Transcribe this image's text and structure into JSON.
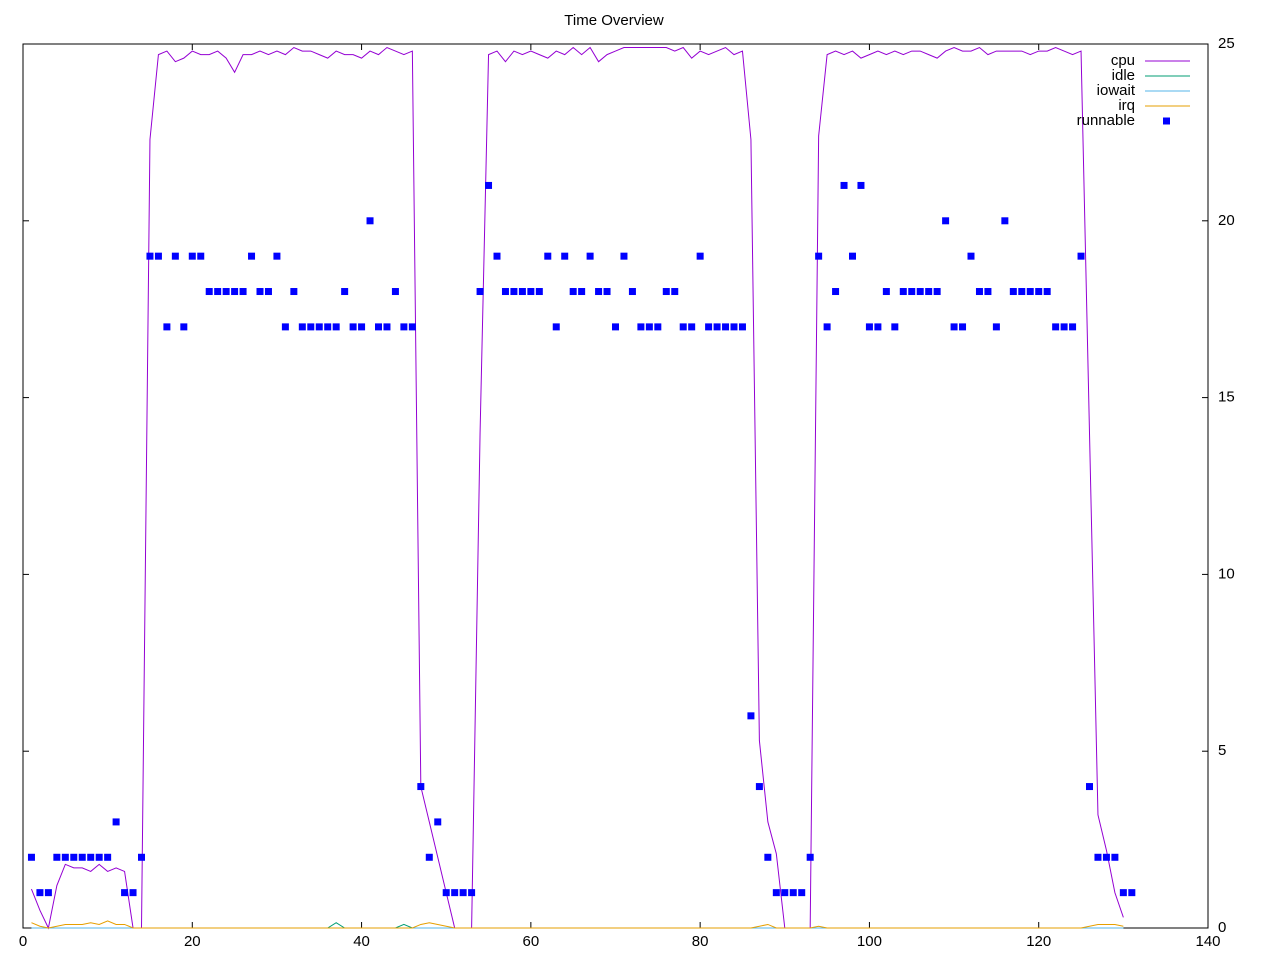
{
  "chart_data": {
    "type": "line",
    "title": "Time Overview",
    "x": [
      1,
      2,
      3,
      4,
      5,
      6,
      7,
      8,
      9,
      10,
      11,
      12,
      13,
      14,
      15,
      16,
      17,
      18,
      19,
      20,
      21,
      22,
      23,
      24,
      25,
      26,
      27,
      28,
      29,
      30,
      31,
      32,
      33,
      34,
      35,
      36,
      37,
      38,
      39,
      40,
      41,
      42,
      43,
      44,
      45,
      46,
      47,
      48,
      49,
      50,
      51,
      52,
      53,
      54,
      55,
      56,
      57,
      58,
      59,
      60,
      61,
      62,
      63,
      64,
      65,
      66,
      67,
      68,
      69,
      70,
      71,
      72,
      73,
      74,
      75,
      76,
      77,
      78,
      79,
      80,
      81,
      82,
      83,
      84,
      85,
      86,
      87,
      88,
      89,
      90,
      91,
      92,
      93,
      94,
      95,
      96,
      97,
      98,
      99,
      100,
      101,
      102,
      103,
      104,
      105,
      106,
      107,
      108,
      109,
      110,
      111,
      112,
      113,
      114,
      115,
      116,
      117,
      118,
      119,
      120,
      121,
      122,
      123,
      124,
      125,
      126,
      127,
      128,
      129,
      130,
      131
    ],
    "series": [
      {
        "name": "cpu",
        "color": "#9400d3",
        "style": "line",
        "values": [
          1.1,
          0.5,
          0,
          1.2,
          1.8,
          1.7,
          1.7,
          1.6,
          1.8,
          1.6,
          1.7,
          1.6,
          0,
          0,
          22.3,
          24.7,
          24.8,
          24.5,
          24.6,
          24.8,
          24.7,
          24.7,
          24.8,
          24.6,
          24.2,
          24.7,
          24.7,
          24.8,
          24.7,
          24.8,
          24.7,
          24.9,
          24.8,
          24.8,
          24.7,
          24.6,
          24.8,
          24.7,
          24.7,
          24.6,
          24.8,
          24.7,
          24.9,
          24.8,
          24.7,
          24.8,
          4.0,
          3.0,
          2.0,
          1.0,
          0,
          0,
          0,
          14,
          24.7,
          24.8,
          24.5,
          24.8,
          24.7,
          24.8,
          24.7,
          24.6,
          24.8,
          24.7,
          24.9,
          24.7,
          24.9,
          24.5,
          24.7,
          24.8,
          24.9,
          24.9,
          24.9,
          24.9,
          24.9,
          24.9,
          24.8,
          24.9,
          24.6,
          24.8,
          24.7,
          24.8,
          24.9,
          24.7,
          24.8,
          22.3,
          5.3,
          3.0,
          2.1,
          0,
          0,
          0,
          0,
          22.4,
          24.7,
          24.8,
          24.7,
          24.8,
          24.6,
          24.7,
          24.8,
          24.7,
          24.8,
          24.7,
          24.8,
          24.8,
          24.7,
          24.6,
          24.8,
          24.9,
          24.8,
          24.8,
          24.9,
          24.7,
          24.8,
          24.8,
          24.8,
          24.8,
          24.7,
          24.8,
          24.8,
          24.9,
          24.8,
          24.7,
          24.8,
          14,
          3.2,
          2.2,
          1.0,
          0.3,
          null
        ]
      },
      {
        "name": "idle",
        "color": "#009e73",
        "style": "line",
        "values": [
          0,
          0,
          0,
          0,
          0,
          0,
          0,
          0,
          0,
          0,
          0,
          0,
          0,
          0,
          0,
          0,
          0,
          0,
          0,
          0,
          0,
          0,
          0,
          0,
          0,
          0,
          0,
          0,
          0,
          0,
          0,
          0,
          0,
          0,
          0,
          0,
          0.15,
          0,
          0,
          0,
          0,
          0,
          0,
          0,
          0.1,
          0,
          0,
          0,
          0,
          0,
          0,
          0,
          0,
          0,
          0,
          0,
          0,
          0,
          0,
          0,
          0,
          0,
          0,
          0,
          0,
          0,
          0,
          0,
          0,
          0,
          0,
          0,
          0,
          0,
          0,
          0,
          0,
          0,
          0,
          0,
          0,
          0,
          0,
          0,
          0,
          0,
          0,
          0,
          0,
          0,
          0,
          0,
          0,
          0,
          0,
          0,
          0,
          0,
          0,
          0,
          0,
          0,
          0,
          0,
          0,
          0,
          0,
          0,
          0,
          0,
          0,
          0,
          0,
          0,
          0,
          0,
          0,
          0,
          0,
          0,
          0,
          0,
          0,
          0,
          0,
          0,
          0,
          0,
          0,
          0,
          null
        ]
      },
      {
        "name": "iowait",
        "color": "#56b4e9",
        "style": "line",
        "values": [
          0,
          0,
          0,
          0,
          0,
          0,
          0,
          0,
          0,
          0,
          0,
          0,
          0,
          0,
          0,
          0,
          0,
          0,
          0,
          0,
          0,
          0,
          0,
          0,
          0,
          0,
          0,
          0,
          0,
          0,
          0,
          0,
          0,
          0,
          0,
          0,
          0,
          0,
          0,
          0,
          0,
          0,
          0,
          0,
          0,
          0,
          0,
          0,
          0,
          0,
          0,
          0,
          0,
          0,
          0,
          0,
          0,
          0,
          0,
          0,
          0,
          0,
          0,
          0,
          0,
          0,
          0,
          0,
          0,
          0,
          0,
          0,
          0,
          0,
          0,
          0,
          0,
          0,
          0,
          0,
          0,
          0,
          0,
          0,
          0,
          0,
          0,
          0,
          0,
          0,
          0,
          0,
          0,
          0,
          0,
          0,
          0,
          0,
          0,
          0,
          0,
          0,
          0,
          0,
          0,
          0,
          0,
          0,
          0,
          0,
          0,
          0,
          0,
          0,
          0,
          0,
          0,
          0,
          0,
          0,
          0,
          0,
          0,
          0,
          0,
          0,
          0,
          0,
          0,
          0,
          null
        ]
      },
      {
        "name": "irq",
        "color": "#e69f00",
        "style": "line",
        "values": [
          0.15,
          0.05,
          0,
          0.05,
          0.1,
          0.1,
          0.1,
          0.15,
          0.1,
          0.2,
          0.1,
          0.1,
          0,
          0,
          0,
          0,
          0,
          0,
          0,
          0,
          0,
          0,
          0,
          0,
          0,
          0,
          0,
          0,
          0,
          0,
          0,
          0,
          0,
          0,
          0,
          0,
          0,
          0,
          0,
          0,
          0,
          0,
          0,
          0,
          0,
          0,
          0.1,
          0.15,
          0.1,
          0.05,
          0,
          0,
          0,
          0,
          0,
          0,
          0,
          0,
          0,
          0,
          0,
          0,
          0,
          0,
          0,
          0,
          0,
          0,
          0,
          0,
          0,
          0,
          0,
          0,
          0,
          0,
          0,
          0,
          0,
          0,
          0,
          0,
          0,
          0,
          0,
          0,
          0.05,
          0.1,
          0,
          0,
          0,
          0,
          0,
          0.05,
          0,
          0,
          0,
          0,
          0,
          0,
          0,
          0,
          0,
          0,
          0,
          0,
          0,
          0,
          0,
          0,
          0,
          0,
          0,
          0,
          0,
          0,
          0,
          0,
          0,
          0,
          0,
          0,
          0,
          0,
          0,
          0.05,
          0.1,
          0.1,
          0.1,
          0.05,
          null
        ]
      },
      {
        "name": "runnable",
        "color": "#0000ff",
        "style": "points",
        "values": [
          2,
          1,
          1,
          2,
          2,
          2,
          2,
          2,
          2,
          2,
          3,
          1,
          1,
          2,
          19,
          19,
          17,
          19,
          17,
          19,
          19,
          18,
          18,
          18,
          18,
          18,
          19,
          18,
          18,
          19,
          17,
          18,
          17,
          17,
          17,
          17,
          17,
          18,
          17,
          17,
          20,
          17,
          17,
          18,
          17,
          17,
          4,
          2,
          3,
          1,
          1,
          1,
          1,
          18,
          21,
          19,
          18,
          18,
          18,
          18,
          18,
          19,
          17,
          19,
          18,
          18,
          19,
          18,
          18,
          17,
          19,
          18,
          17,
          17,
          17,
          18,
          18,
          17,
          17,
          19,
          17,
          17,
          17,
          17,
          17,
          6,
          4,
          2,
          1,
          1,
          1,
          1,
          2,
          19,
          17,
          18,
          21,
          19,
          21,
          17,
          17,
          18,
          17,
          18,
          18,
          18,
          18,
          18,
          20,
          17,
          17,
          19,
          18,
          18,
          17,
          20,
          18,
          18,
          18,
          18,
          18,
          17,
          17,
          17,
          19,
          4,
          2,
          2,
          2,
          1,
          1
        ]
      }
    ],
    "xlim": [
      0,
      140
    ],
    "xticks": [
      0,
      20,
      40,
      60,
      80,
      100,
      120,
      140
    ],
    "ylim": [
      0,
      25
    ],
    "yticks": [
      0,
      5,
      10,
      15,
      20,
      25
    ],
    "legend": "top-right"
  }
}
